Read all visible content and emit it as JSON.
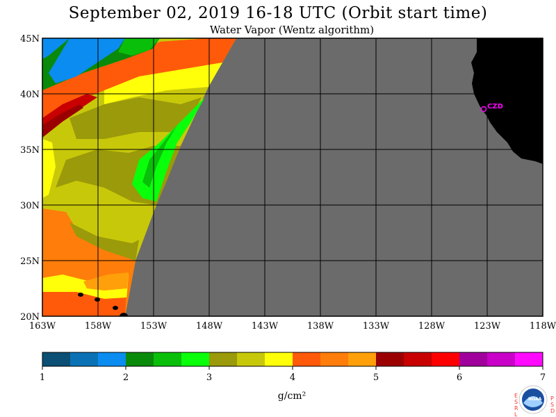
{
  "title": "September 02, 2019  16-18 UTC  (Orbit start time)",
  "subtitle": "Water Vapor (Wentz algorithm)",
  "map": {
    "lon_labels": [
      "163W",
      "158W",
      "153W",
      "148W",
      "143W",
      "138W",
      "133W",
      "128W",
      "123W",
      "118W"
    ],
    "lat_labels": [
      "45N",
      "40N",
      "35N",
      "30N",
      "25N",
      "20N"
    ],
    "station_label": "CZD",
    "colors": {
      "no_data": "#6b6b6b",
      "land": "#000000",
      "grid": "#000000",
      "station": "#ff00ff"
    }
  },
  "colorbar": {
    "units": "g/cm²",
    "tick_labels": [
      "1",
      "2",
      "3",
      "4",
      "5",
      "6",
      "7"
    ],
    "colors": [
      "#0b4f74",
      "#0a72b4",
      "#0a8cf0",
      "#0a8a0a",
      "#0abf0a",
      "#0aff0a",
      "#9a9a0a",
      "#c8c80a",
      "#ffff0a",
      "#ff5a0a",
      "#ff7d0a",
      "#ffa00a",
      "#9b0000",
      "#c80000",
      "#ff0000",
      "#a0009b",
      "#c800c8",
      "#ff0aff"
    ]
  },
  "logo": {
    "text": "NOAA",
    "left_letters": [
      "E",
      "S",
      "R",
      "L"
    ],
    "right_letters": [
      "P",
      "S",
      "D"
    ]
  }
}
